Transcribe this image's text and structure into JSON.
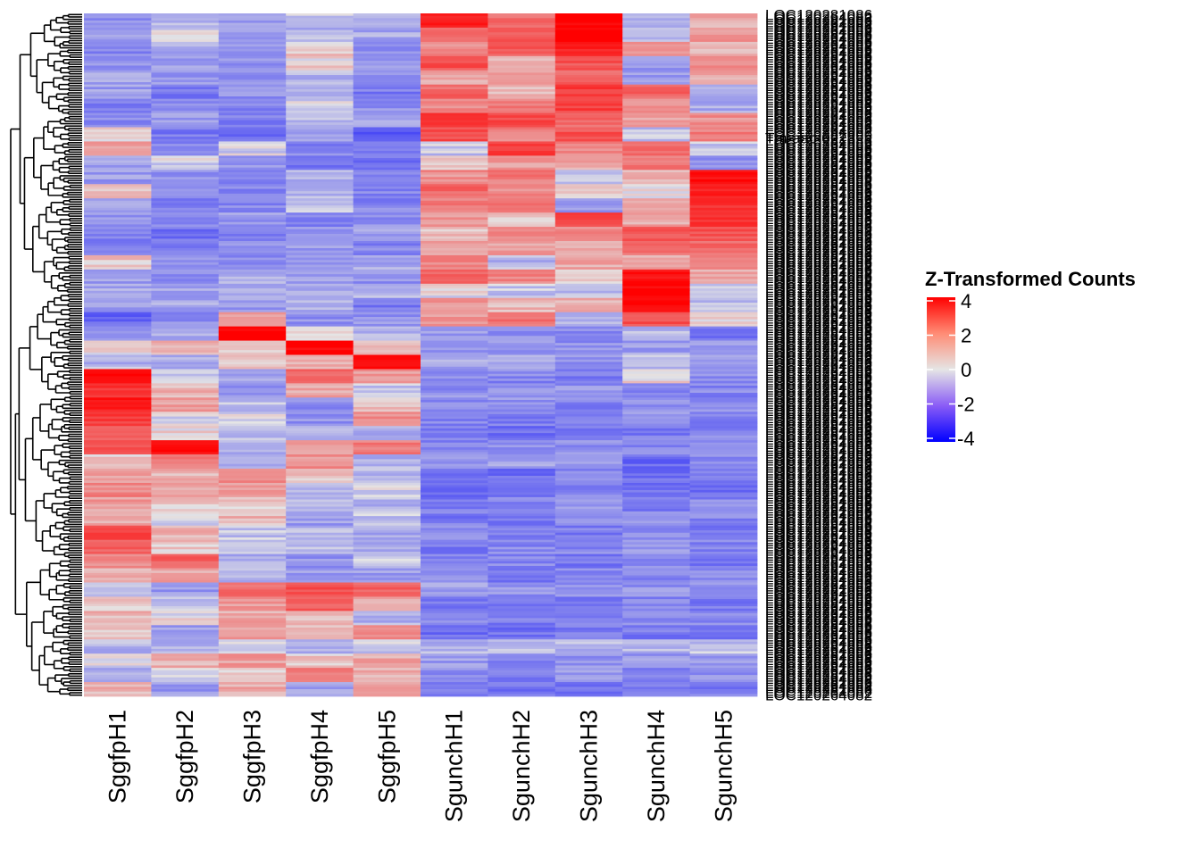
{
  "chart_data": {
    "type": "heatmap",
    "title": "",
    "legend": {
      "title": "Z-Transformed Counts",
      "ticks": [
        4,
        2,
        0,
        -2,
        -4
      ],
      "range": [
        -4.2,
        4.2
      ],
      "colors": {
        "low": "#0000FF",
        "mid": "#E5E5E5",
        "high": "#FF0000"
      },
      "placement": "right"
    },
    "columns": [
      "SggfpH1",
      "SggfpH2",
      "SggfpH3",
      "SggfpH4",
      "SggfpH5",
      "SgunchH1",
      "SgunchH2",
      "SgunchH3",
      "SgunchH4",
      "SgunchH5"
    ],
    "row_labels_visible": [
      "LOC120281086",
      "Tm-aac-0223",
      "LOC120264082"
    ],
    "row_labels_note": "approx. 300 gene rows; labels overlap and are largely illegible",
    "row_dendrogram": true,
    "row_bins": 48,
    "values": [
      [
        -1.2,
        -0.6,
        -1.0,
        -0.4,
        -0.6,
        3.5,
        1.8,
        4.2,
        -0.8,
        0.8
      ],
      [
        -1.0,
        -0.2,
        -0.9,
        -0.6,
        -0.8,
        2.0,
        2.4,
        4.2,
        -0.6,
        1.0
      ],
      [
        -1.4,
        -0.8,
        -1.0,
        0.4,
        -1.2,
        1.2,
        2.2,
        3.6,
        1.2,
        0.4
      ],
      [
        -1.2,
        -1.0,
        -1.1,
        0.2,
        -1.0,
        2.4,
        0.4,
        2.4,
        -1.0,
        1.2
      ],
      [
        -0.8,
        -1.2,
        -1.2,
        -0.6,
        -1.2,
        0.8,
        1.0,
        2.0,
        -1.0,
        0.8
      ],
      [
        -1.0,
        -1.6,
        -1.2,
        -0.8,
        -1.6,
        2.0,
        0.6,
        2.8,
        2.0,
        -0.6
      ],
      [
        -1.6,
        -1.2,
        -1.4,
        -0.2,
        -1.2,
        1.4,
        1.6,
        2.8,
        1.4,
        -0.8
      ],
      [
        -1.4,
        -1.0,
        -1.6,
        -0.4,
        -0.8,
        3.2,
        2.6,
        2.0,
        0.8,
        1.2
      ],
      [
        0.2,
        -1.6,
        -1.8,
        -1.0,
        -2.2,
        2.6,
        1.4,
        2.4,
        -0.4,
        1.6
      ],
      [
        1.0,
        -1.4,
        -0.2,
        -1.4,
        -1.8,
        -0.4,
        2.8,
        1.4,
        2.0,
        -0.4
      ],
      [
        -1.0,
        -0.2,
        -1.2,
        -1.6,
        -1.8,
        0.2,
        1.0,
        0.8,
        1.6,
        -1.2
      ],
      [
        -1.0,
        -1.2,
        -1.6,
        -0.6,
        -1.4,
        1.2,
        1.6,
        -0.4,
        0.6,
        4.0
      ],
      [
        0.6,
        -1.4,
        -1.4,
        -0.6,
        -1.4,
        2.0,
        1.4,
        0.4,
        0.2,
        3.6
      ],
      [
        -1.0,
        -1.6,
        -1.4,
        -0.2,
        -1.4,
        1.6,
        2.0,
        -1.0,
        1.0,
        3.2
      ],
      [
        -1.2,
        -1.4,
        -1.0,
        -1.4,
        -1.2,
        1.2,
        0.4,
        2.6,
        0.8,
        3.0
      ],
      [
        -1.6,
        -1.8,
        -1.4,
        -1.2,
        -1.0,
        0.4,
        1.2,
        1.4,
        2.4,
        2.4
      ],
      [
        -1.4,
        -1.6,
        -1.2,
        -1.0,
        -1.4,
        0.8,
        1.0,
        0.6,
        1.8,
        2.0
      ],
      [
        0.4,
        -1.0,
        -1.2,
        -1.2,
        -0.8,
        1.4,
        -0.6,
        0.8,
        0.8,
        1.6
      ],
      [
        -1.0,
        -1.2,
        -0.8,
        -1.0,
        -1.2,
        2.2,
        1.4,
        0.2,
        3.8,
        0.8
      ],
      [
        -0.8,
        -0.8,
        -0.6,
        -0.6,
        -0.6,
        0.0,
        -0.4,
        -0.6,
        4.2,
        -0.2
      ],
      [
        -1.0,
        -0.8,
        -1.0,
        -0.6,
        -1.6,
        1.2,
        0.6,
        0.6,
        4.2,
        -0.4
      ],
      [
        -2.0,
        -1.2,
        0.8,
        -1.2,
        -1.2,
        1.0,
        1.8,
        -0.8,
        2.4,
        0.2
      ],
      [
        -1.2,
        -0.8,
        4.0,
        0.4,
        -0.6,
        -1.0,
        -1.2,
        -1.4,
        -0.6,
        -1.6
      ],
      [
        0.0,
        0.6,
        0.2,
        4.2,
        0.4,
        -1.2,
        -1.0,
        -1.2,
        -1.0,
        -1.0
      ],
      [
        -0.6,
        -0.6,
        0.4,
        0.6,
        4.0,
        -0.8,
        -0.8,
        -1.2,
        -0.6,
        -1.0
      ],
      [
        4.2,
        -0.4,
        -0.8,
        2.2,
        1.0,
        -1.2,
        -1.4,
        -1.6,
        0.2,
        -1.2
      ],
      [
        3.0,
        0.6,
        -1.2,
        0.8,
        -0.4,
        -1.2,
        -1.2,
        -1.2,
        -1.4,
        -1.4
      ],
      [
        3.6,
        1.0,
        -0.4,
        -1.2,
        0.4,
        -1.4,
        -1.2,
        -1.4,
        -1.2,
        -1.2
      ],
      [
        2.8,
        -0.2,
        -0.2,
        -1.2,
        1.2,
        -1.4,
        -1.6,
        -1.6,
        -1.2,
        -1.4
      ],
      [
        2.2,
        0.2,
        -0.4,
        -0.6,
        -0.8,
        -1.6,
        -1.8,
        -1.8,
        -1.6,
        -1.4
      ],
      [
        2.4,
        4.0,
        -0.8,
        0.8,
        1.6,
        -1.4,
        -1.2,
        -1.2,
        -1.4,
        -1.4
      ],
      [
        0.4,
        1.6,
        -0.6,
        1.2,
        -0.6,
        -1.2,
        -1.0,
        -1.0,
        -2.0,
        -1.2
      ],
      [
        0.8,
        0.6,
        1.6,
        0.4,
        -0.6,
        -1.8,
        -1.8,
        -1.4,
        -1.8,
        -1.6
      ],
      [
        1.4,
        0.8,
        1.0,
        -0.4,
        -0.2,
        -1.8,
        -1.6,
        -1.4,
        -1.8,
        -1.8
      ],
      [
        1.0,
        0.4,
        0.4,
        -0.6,
        -0.6,
        -1.6,
        -1.4,
        -1.2,
        -1.6,
        -1.4
      ],
      [
        0.8,
        -0.2,
        0.6,
        -1.0,
        -0.4,
        -1.6,
        -1.6,
        -1.4,
        -1.2,
        -1.4
      ],
      [
        2.6,
        0.6,
        -0.4,
        -0.6,
        -0.8,
        -1.4,
        -1.4,
        -1.6,
        -1.2,
        -1.6
      ],
      [
        2.2,
        0.4,
        -0.6,
        -0.4,
        -0.8,
        -1.6,
        -1.4,
        -1.4,
        -1.0,
        -1.4
      ],
      [
        1.2,
        2.2,
        -0.8,
        -1.2,
        -0.2,
        -1.6,
        -1.4,
        -1.6,
        -1.4,
        -1.8
      ],
      [
        0.8,
        0.8,
        -0.6,
        -1.0,
        -1.0,
        -1.4,
        -1.6,
        -1.4,
        -1.4,
        -1.4
      ],
      [
        -0.6,
        -1.0,
        1.8,
        2.4,
        2.0,
        -1.0,
        -1.2,
        -1.2,
        -1.2,
        -1.2
      ],
      [
        0.4,
        -0.4,
        1.0,
        2.2,
        0.6,
        -1.6,
        -1.8,
        -1.6,
        -1.4,
        -1.6
      ],
      [
        0.6,
        0.0,
        0.8,
        0.4,
        -0.6,
        -1.4,
        -1.6,
        -1.4,
        -1.4,
        -1.4
      ],
      [
        0.2,
        -1.0,
        1.0,
        0.6,
        1.4,
        -1.8,
        -1.8,
        -1.6,
        -1.6,
        -2.0
      ],
      [
        -0.6,
        -0.6,
        -0.2,
        -0.8,
        -0.4,
        -0.6,
        -0.6,
        -0.6,
        -0.6,
        -0.4
      ],
      [
        -0.2,
        0.6,
        1.0,
        0.4,
        0.8,
        -1.0,
        -1.4,
        -1.2,
        -1.0,
        -1.0
      ],
      [
        -0.8,
        -0.4,
        0.2,
        1.4,
        0.6,
        -1.2,
        -1.6,
        -1.0,
        -1.4,
        -1.2
      ],
      [
        0.6,
        -1.0,
        0.8,
        -0.8,
        1.2,
        -1.4,
        -1.8,
        -1.6,
        -1.4,
        -1.6
      ]
    ]
  }
}
